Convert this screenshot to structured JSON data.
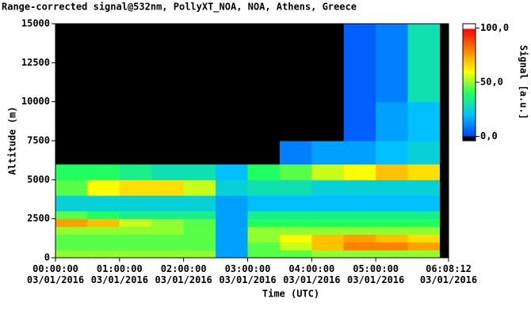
{
  "chart_data": {
    "type": "heatmap",
    "title": "Range-corrected signal@532nm, PollyXT_NOA, NOA, Athens, Greece",
    "xlabel": "Time (UTC)",
    "ylabel": "Altitude (m)",
    "colorbar_label": "Signal [a.u.]",
    "xlim": [
      0,
      6.1367
    ],
    "xticks": [
      {
        "value": 0,
        "label": "00:00:00\n03/01/2016"
      },
      {
        "value": 1,
        "label": "01:00:00\n03/01/2016"
      },
      {
        "value": 2,
        "label": "02:00:00\n03/01/2016"
      },
      {
        "value": 3,
        "label": "03:00:00\n03/01/2016"
      },
      {
        "value": 4,
        "label": "04:00:00\n03/01/2016"
      },
      {
        "value": 5,
        "label": "05:00:00\n03/01/2016"
      },
      {
        "value": 6.1367,
        "label": "06:08:12\n03/01/2016"
      }
    ],
    "ylim": [
      0,
      15000
    ],
    "yticks": [
      0,
      2500,
      5000,
      7500,
      10000,
      12500,
      15000
    ],
    "x_edges": [
      0,
      0.5,
      1,
      1.5,
      2,
      2.5,
      3,
      3.5,
      4,
      4.5,
      5,
      5.5,
      6,
      6.1367
    ],
    "y_edges": [
      0,
      500,
      1000,
      1500,
      2000,
      2500,
      3000,
      4000,
      5000,
      6000,
      7500,
      10000,
      15000
    ],
    "values": [
      [
        50,
        50,
        50,
        50,
        50,
        15,
        45,
        45,
        50,
        50,
        50,
        50,
        -3
      ],
      [
        45,
        45,
        45,
        45,
        45,
        15,
        45,
        55,
        70,
        80,
        80,
        75,
        -3
      ],
      [
        45,
        45,
        45,
        45,
        45,
        15,
        50,
        60,
        70,
        75,
        70,
        65,
        -3
      ],
      [
        50,
        50,
        50,
        50,
        45,
        15,
        50,
        50,
        50,
        50,
        50,
        50,
        -3
      ],
      [
        75,
        70,
        55,
        50,
        45,
        15,
        40,
        40,
        40,
        40,
        40,
        40,
        -3
      ],
      [
        45,
        40,
        35,
        35,
        35,
        15,
        35,
        35,
        35,
        35,
        35,
        35,
        -3
      ],
      [
        25,
        25,
        25,
        25,
        25,
        15,
        20,
        20,
        20,
        20,
        20,
        20,
        -3
      ],
      [
        45,
        60,
        65,
        65,
        55,
        25,
        30,
        30,
        25,
        25,
        25,
        25,
        -3
      ],
      [
        40,
        40,
        35,
        30,
        30,
        20,
        40,
        45,
        55,
        60,
        70,
        65,
        -3
      ],
      [
        -2,
        -2,
        -2,
        -2,
        -2,
        -2,
        -2,
        10,
        15,
        15,
        20,
        25,
        -3
      ],
      [
        -2,
        -2,
        -2,
        -2,
        -2,
        -2,
        -2,
        -2,
        -2,
        5,
        15,
        20,
        -3
      ],
      [
        -2,
        -2,
        -2,
        -2,
        -2,
        -2,
        -2,
        -2,
        -2,
        5,
        10,
        30,
        -3
      ]
    ],
    "clim": [
      -4,
      104
    ],
    "cticks": [
      {
        "value": 0,
        "label": "0,0"
      },
      {
        "value": 50,
        "label": "50,0"
      },
      {
        "value": 100,
        "label": "100,0"
      }
    ],
    "under_color": "#000000",
    "over_color": "#ffffff",
    "colormap": [
      {
        "value": 0,
        "color": "#0040ff"
      },
      {
        "value": 20,
        "color": "#00c0ff"
      },
      {
        "value": 40,
        "color": "#20ff60"
      },
      {
        "value": 60,
        "color": "#ffff00"
      },
      {
        "value": 80,
        "color": "#ff8000"
      },
      {
        "value": 100,
        "color": "#ff0000"
      }
    ]
  }
}
